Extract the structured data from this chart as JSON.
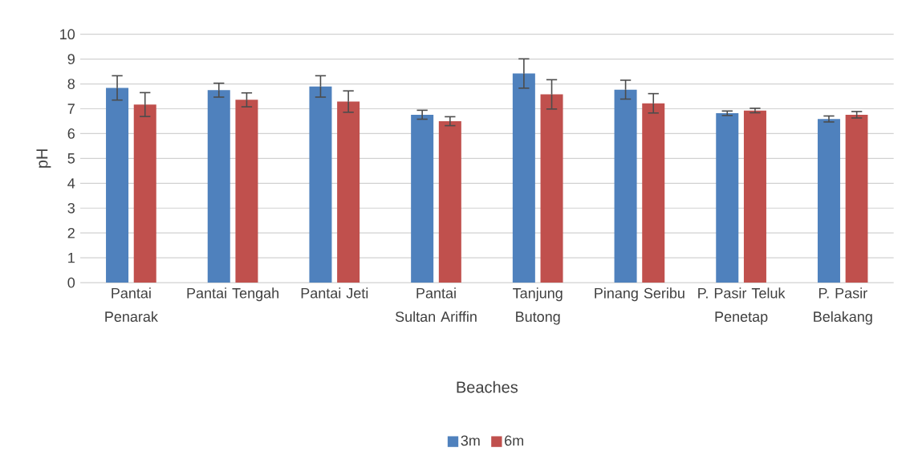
{
  "chart_data": {
    "type": "bar",
    "xlabel": "Beaches",
    "ylabel": "pH",
    "categories": [
      "Pantai Penarak",
      "Pantai Tengah",
      "Pantai Jeti",
      "Pantai Sultan Ariffin",
      "Tanjung Butong",
      "Pinang Seribu",
      "P. Pasir Teluk Penetap",
      "P. Pasir Belakang"
    ],
    "series": [
      {
        "name": "3m",
        "color": "#4f81bd",
        "values": [
          7.84,
          7.75,
          7.9,
          6.76,
          8.42,
          7.77,
          6.82,
          6.59
        ],
        "errors": [
          0.49,
          0.28,
          0.43,
          0.18,
          0.59,
          0.38,
          0.09,
          0.12
        ]
      },
      {
        "name": "6m",
        "color": "#c0504d",
        "values": [
          7.17,
          7.36,
          7.29,
          6.5,
          7.58,
          7.22,
          6.93,
          6.76
        ],
        "errors": [
          0.48,
          0.28,
          0.43,
          0.18,
          0.59,
          0.39,
          0.09,
          0.13
        ]
      }
    ],
    "ylim": [
      0,
      10
    ],
    "yticks": [
      0,
      1,
      2,
      3,
      4,
      5,
      6,
      7,
      8,
      9,
      10
    ],
    "grid": "y",
    "legend": "bottom"
  }
}
